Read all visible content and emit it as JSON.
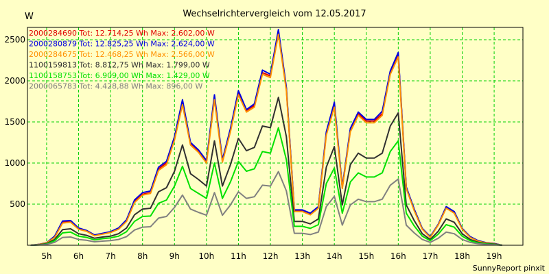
{
  "chart_data": {
    "type": "line",
    "title": "Wechselrichtervergleich vom 12.05.2017",
    "ylabel": "W",
    "xlabel": "",
    "ylim": [
      0,
      2650
    ],
    "xlim": [
      4.4,
      19.9
    ],
    "x_ticks": [
      5,
      6,
      7,
      8,
      9,
      10,
      11,
      12,
      13,
      14,
      15,
      16,
      17,
      18,
      19
    ],
    "x_tick_labels": [
      "5h",
      "6h",
      "7h",
      "8h",
      "9h",
      "10h",
      "11h",
      "12h",
      "13h",
      "14h",
      "15h",
      "16h",
      "17h",
      "18h",
      "19h"
    ],
    "y_ticks": [
      500,
      1000,
      1500,
      2000,
      2500
    ],
    "y_tick_labels": [
      "500",
      "1000",
      "1500",
      "2000",
      "2500"
    ],
    "grid": true,
    "legend_position": "top-left",
    "footer": "SunnyReport pinxit",
    "x": [
      4.5,
      4.75,
      5.0,
      5.25,
      5.5,
      5.75,
      6.0,
      6.25,
      6.5,
      6.75,
      7.0,
      7.25,
      7.5,
      7.75,
      8.0,
      8.25,
      8.5,
      8.75,
      9.0,
      9.25,
      9.5,
      9.75,
      10.0,
      10.25,
      10.5,
      10.75,
      11.0,
      11.25,
      11.5,
      11.75,
      12.0,
      12.25,
      12.5,
      12.75,
      13.0,
      13.25,
      13.5,
      13.75,
      14.0,
      14.25,
      14.5,
      14.75,
      15.0,
      15.25,
      15.5,
      15.75,
      16.0,
      16.25,
      16.5,
      16.75,
      17.0,
      17.25,
      17.5,
      17.75,
      18.0,
      18.25,
      18.5,
      18.75,
      19.0,
      19.25
    ],
    "series": [
      {
        "name": "2000284690",
        "legend": "2000284690 Tot: 12.714,25 Wh Max: 2.602,00 W",
        "color": "#e00000",
        "values": [
          0,
          10,
          30,
          100,
          280,
          290,
          200,
          175,
          120,
          140,
          160,
          200,
          300,
          530,
          620,
          640,
          930,
          1000,
          1300,
          1740,
          1240,
          1150,
          1020,
          1800,
          1030,
          1400,
          1860,
          1640,
          1700,
          2100,
          2060,
          2600,
          1900,
          420,
          420,
          380,
          460,
          1360,
          1710,
          700,
          1400,
          1600,
          1510,
          1510,
          1600,
          2100,
          2320,
          700,
          430,
          200,
          100,
          250,
          460,
          400,
          200,
          100,
          50,
          30,
          20,
          0
        ]
      },
      {
        "name": "2000280879",
        "legend": "2000280879 Tot: 12.825,25 Wh Max: 2.624,00 W",
        "color": "#0000e0",
        "values": [
          0,
          10,
          30,
          110,
          295,
          300,
          210,
          180,
          125,
          145,
          165,
          210,
          310,
          550,
          640,
          660,
          950,
          1020,
          1320,
          1770,
          1250,
          1160,
          1030,
          1830,
          1040,
          1420,
          1880,
          1650,
          1720,
          2130,
          2080,
          2624,
          1920,
          430,
          430,
          390,
          470,
          1380,
          1740,
          710,
          1420,
          1620,
          1530,
          1530,
          1630,
          2120,
          2345,
          710,
          440,
          205,
          105,
          255,
          470,
          410,
          205,
          105,
          55,
          32,
          22,
          0
        ]
      },
      {
        "name": "2000284675",
        "legend": "2000284675 Tot: 12.468,25 Wh Max: 2.566,00 W",
        "color": "#ff9000",
        "values": [
          0,
          8,
          28,
          95,
          270,
          280,
          195,
          170,
          115,
          135,
          155,
          195,
          290,
          520,
          610,
          630,
          910,
          980,
          1280,
          1710,
          1220,
          1130,
          1000,
          1770,
          1010,
          1380,
          1830,
          1620,
          1680,
          2080,
          2040,
          2566,
          1880,
          410,
          410,
          370,
          450,
          1340,
          1680,
          690,
          1380,
          1580,
          1490,
          1490,
          1580,
          2080,
          2290,
          690,
          420,
          195,
          95,
          245,
          450,
          390,
          195,
          95,
          48,
          28,
          18,
          0
        ]
      },
      {
        "name": "1100159813",
        "legend": "1100159813 Tot: 8.812,75 Wh Max: 1.799,00 W",
        "color": "#303030",
        "values": [
          0,
          5,
          20,
          70,
          190,
          200,
          140,
          120,
          85,
          100,
          110,
          140,
          210,
          370,
          440,
          450,
          650,
          700,
          900,
          1220,
          870,
          800,
          720,
          1270,
          720,
          980,
          1300,
          1150,
          1190,
          1450,
          1430,
          1799,
          1320,
          290,
          290,
          260,
          320,
          950,
          1200,
          490,
          980,
          1120,
          1060,
          1060,
          1120,
          1450,
          1610,
          490,
          300,
          140,
          70,
          170,
          320,
          280,
          140,
          70,
          35,
          20,
          14,
          0
        ]
      },
      {
        "name": "1100158753",
        "legend": "1100158753 Tot: 6.909,00 Wh Max: 1.429,00 W",
        "color": "#00e000",
        "values": [
          0,
          4,
          15,
          55,
          150,
          160,
          110,
          95,
          65,
          80,
          90,
          110,
          165,
          290,
          350,
          355,
          510,
          550,
          720,
          960,
          690,
          630,
          570,
          1000,
          570,
          770,
          1020,
          900,
          930,
          1140,
          1120,
          1429,
          1040,
          230,
          230,
          205,
          250,
          750,
          940,
          390,
          770,
          880,
          830,
          830,
          880,
          1140,
          1270,
          390,
          235,
          110,
          55,
          135,
          250,
          220,
          110,
          55,
          28,
          16,
          11,
          0
        ]
      },
      {
        "name": "2000065783",
        "legend": "2000065783 Tot: 4.428,88 Wh Max: 896,00 W",
        "color": "#808080",
        "values": [
          0,
          3,
          10,
          35,
          95,
          100,
          70,
          60,
          42,
          50,
          57,
          70,
          105,
          185,
          220,
          225,
          330,
          350,
          460,
          610,
          440,
          400,
          365,
          640,
          365,
          490,
          650,
          570,
          590,
          730,
          720,
          896,
          660,
          145,
          145,
          130,
          160,
          470,
          595,
          245,
          490,
          560,
          530,
          530,
          560,
          730,
          805,
          245,
          150,
          70,
          35,
          85,
          160,
          140,
          70,
          35,
          18,
          10,
          7,
          0
        ]
      }
    ]
  }
}
